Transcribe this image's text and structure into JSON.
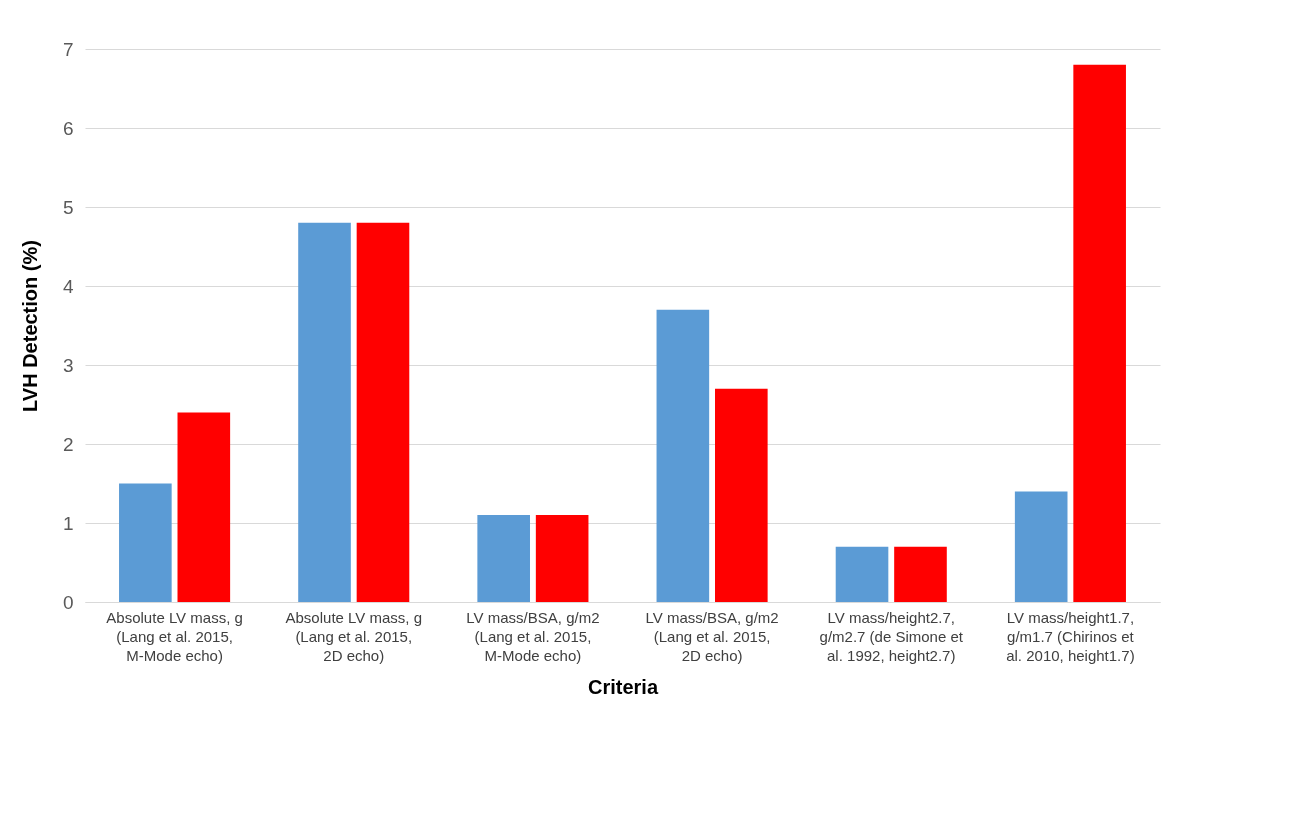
{
  "chart_data": {
    "type": "bar",
    "xlabel": "Criteria",
    "ylabel": "LVH Detection (%)",
    "categories": [
      "Absolute LV mass, g (Lang et al. 2015, M-Mode echo)",
      "Absolute LV mass, g (Lang et al. 2015, 2D echo)",
      "LV mass/BSA, g/m2  (Lang et al. 2015, M-Mode echo)",
      "LV mass/BSA, g/m2 (Lang et al. 2015, 2D echo)",
      "LV mass/height2.7, g/m2.7 (de Simone et al. 1992, height2.7)",
      "LV mass/height1.7, g/m1.7 (Chirinos et al. 2010, height1.7)"
    ],
    "series": [
      {
        "color": "#5b9bd5",
        "values": [
          1.5,
          4.8,
          1.1,
          3.7,
          0.7,
          1.4
        ]
      },
      {
        "color": "#ff0000",
        "values": [
          2.4,
          4.8,
          1.1,
          2.7,
          0.7,
          6.8
        ]
      }
    ],
    "ylim": [
      0,
      7
    ],
    "yticks": [
      0,
      1,
      2,
      3,
      4,
      5,
      6,
      7
    ],
    "grid": "y",
    "legend": false
  }
}
